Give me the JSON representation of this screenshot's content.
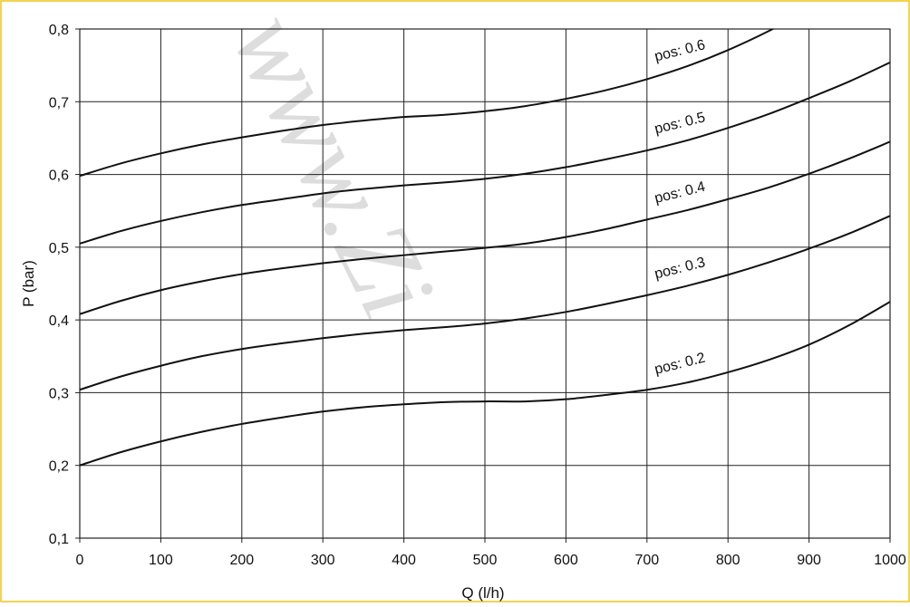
{
  "chart_data": {
    "type": "line",
    "title": "",
    "xlabel": "Q (l/h)",
    "ylabel": "P (bar)",
    "xlim": [
      0,
      1000
    ],
    "ylim": [
      0.1,
      0.8
    ],
    "grid": true,
    "legend": "none",
    "x_ticks": [
      "0",
      "100",
      "200",
      "300",
      "400",
      "500",
      "600",
      "700",
      "800",
      "900",
      "1000"
    ],
    "y_ticks": [
      "0,1",
      "0,2",
      "0,3",
      "0,4",
      "0,5",
      "0,6",
      "0,7",
      "0,8"
    ],
    "x": [
      0,
      50,
      100,
      150,
      200,
      250,
      300,
      350,
      400,
      450,
      500,
      550,
      600,
      650,
      700,
      750,
      800,
      850,
      900,
      950,
      1000
    ],
    "series": [
      {
        "name": "pos: 0.2",
        "values": [
          0.2,
          0.218,
          0.233,
          0.246,
          0.257,
          0.266,
          0.274,
          0.28,
          0.284,
          0.287,
          0.288,
          0.288,
          0.291,
          0.297,
          0.304,
          0.314,
          0.328,
          0.345,
          0.366,
          0.393,
          0.425
        ]
      },
      {
        "name": "pos: 0.3",
        "values": [
          0.304,
          0.322,
          0.337,
          0.35,
          0.36,
          0.368,
          0.375,
          0.381,
          0.386,
          0.39,
          0.395,
          0.402,
          0.411,
          0.422,
          0.434,
          0.447,
          0.462,
          0.479,
          0.498,
          0.519,
          0.543
        ]
      },
      {
        "name": "pos: 0.4",
        "values": [
          0.408,
          0.426,
          0.441,
          0.453,
          0.463,
          0.471,
          0.478,
          0.484,
          0.489,
          0.494,
          0.499,
          0.505,
          0.514,
          0.525,
          0.538,
          0.551,
          0.566,
          0.582,
          0.601,
          0.622,
          0.645
        ]
      },
      {
        "name": "pos: 0.5",
        "values": [
          0.505,
          0.522,
          0.536,
          0.548,
          0.558,
          0.566,
          0.574,
          0.58,
          0.585,
          0.589,
          0.594,
          0.601,
          0.61,
          0.621,
          0.633,
          0.647,
          0.664,
          0.683,
          0.705,
          0.728,
          0.754
        ]
      },
      {
        "name": "pos: 0.6",
        "values": [
          0.598,
          0.615,
          0.629,
          0.641,
          0.651,
          0.66,
          0.668,
          0.674,
          0.679,
          0.682,
          0.687,
          0.694,
          0.704,
          0.716,
          0.731,
          0.749,
          0.771,
          0.797,
          null,
          null,
          null
        ]
      }
    ],
    "watermark": "www.Zi"
  }
}
